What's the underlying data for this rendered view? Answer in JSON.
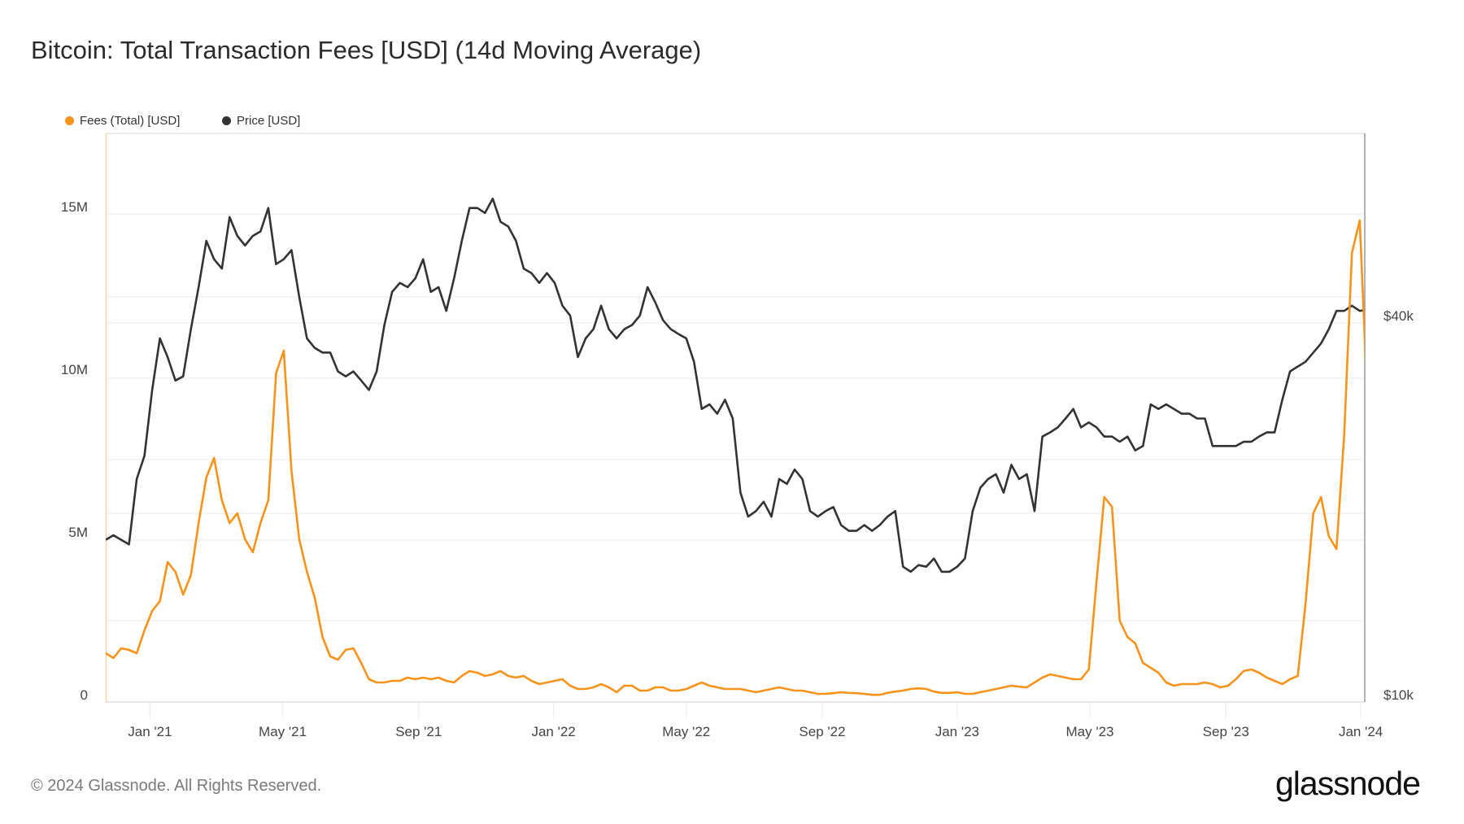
{
  "title": "Bitcoin: Total Transaction Fees [USD] (14d Moving Average)",
  "footer": "© 2024 Glassnode. All Rights Reserved.",
  "logo": "glassnode",
  "colors": {
    "fees": "#f7931a",
    "price": "#333333"
  },
  "chart_data": {
    "type": "line",
    "title": "Bitcoin: Total Transaction Fees [USD] (14d Moving Average)",
    "legend": [
      {
        "name": "Fees (Total) [USD]",
        "color": "#f7931a"
      },
      {
        "name": "Price [USD]",
        "color": "#333333"
      }
    ],
    "legend_position": "top-left",
    "x": {
      "start_date": "2020-11-22",
      "step_days": 7,
      "tick_labels": [
        "Jan '21",
        "May '21",
        "Sep '21",
        "Jan '22",
        "May '22",
        "Sep '22",
        "Jan '23",
        "May '23",
        "Sep '23",
        "Jan '24"
      ],
      "tick_dates": [
        "2021-01-01",
        "2021-05-01",
        "2021-09-01",
        "2022-01-01",
        "2022-05-01",
        "2022-09-01",
        "2023-01-01",
        "2023-05-01",
        "2023-09-01",
        "2024-01-01"
      ]
    },
    "y_left": {
      "label": "Fees (Total) [USD]",
      "unit": "millions USD",
      "range": [
        0,
        17.5
      ],
      "tick_values": [
        0,
        5,
        10,
        15
      ],
      "tick_labels": [
        "0",
        "5M",
        "10M",
        "15M"
      ]
    },
    "y_right": {
      "label": "Price [USD]",
      "scale": "log",
      "range": [
        10000,
        80000
      ],
      "tick_values": [
        10000,
        40000
      ],
      "tick_labels": [
        "$10k",
        "$40k"
      ]
    },
    "grid": true,
    "series": [
      {
        "name": "Fees (Total) [USD]",
        "axis": "left",
        "unit": "millions USD",
        "values": [
          1.5,
          1.35,
          1.65,
          1.6,
          1.5,
          2.2,
          2.8,
          3.1,
          4.3,
          4.0,
          3.3,
          3.9,
          5.5,
          6.9,
          7.5,
          6.2,
          5.5,
          5.8,
          5.0,
          4.6,
          5.5,
          6.2,
          10.1,
          10.8,
          7.1,
          5.0,
          4.0,
          3.2,
          2.0,
          1.4,
          1.3,
          1.6,
          1.65,
          1.2,
          0.7,
          0.6,
          0.6,
          0.65,
          0.65,
          0.75,
          0.7,
          0.75,
          0.7,
          0.75,
          0.65,
          0.6,
          0.8,
          0.95,
          0.9,
          0.8,
          0.85,
          0.95,
          0.8,
          0.75,
          0.8,
          0.65,
          0.55,
          0.6,
          0.65,
          0.7,
          0.5,
          0.4,
          0.4,
          0.45,
          0.55,
          0.45,
          0.3,
          0.5,
          0.5,
          0.35,
          0.35,
          0.45,
          0.45,
          0.35,
          0.35,
          0.4,
          0.5,
          0.6,
          0.5,
          0.45,
          0.4,
          0.4,
          0.4,
          0.35,
          0.3,
          0.35,
          0.4,
          0.45,
          0.4,
          0.35,
          0.35,
          0.3,
          0.25,
          0.25,
          0.27,
          0.3,
          0.28,
          0.27,
          0.25,
          0.22,
          0.22,
          0.28,
          0.32,
          0.35,
          0.4,
          0.42,
          0.4,
          0.32,
          0.28,
          0.28,
          0.3,
          0.25,
          0.25,
          0.3,
          0.35,
          0.4,
          0.45,
          0.5,
          0.47,
          0.45,
          0.6,
          0.75,
          0.85,
          0.8,
          0.75,
          0.7,
          0.7,
          1.0,
          3.7,
          6.3,
          6.0,
          2.5,
          2.0,
          1.8,
          1.2,
          1.05,
          0.9,
          0.6,
          0.5,
          0.55,
          0.55,
          0.55,
          0.6,
          0.55,
          0.45,
          0.5,
          0.7,
          0.95,
          1.0,
          0.9,
          0.75,
          0.65,
          0.55,
          0.7,
          0.8,
          3.0,
          5.8,
          6.3,
          5.1,
          4.7,
          8.2,
          13.8,
          14.8,
          9.2
        ]
      },
      {
        "name": "Price [USD]",
        "axis": "right",
        "unit": "USD",
        "values": [
          18100,
          18400,
          18100,
          17800,
          22600,
          24600,
          31300,
          37800,
          35300,
          32400,
          32900,
          39100,
          45600,
          54000,
          50500,
          48800,
          58900,
          55000,
          53100,
          55000,
          55900,
          60900,
          49600,
          50500,
          52200,
          44000,
          37800,
          36500,
          35900,
          35900,
          33500,
          32900,
          33500,
          32400,
          31300,
          33500,
          39700,
          44800,
          46300,
          45600,
          47100,
          50500,
          44800,
          45600,
          41800,
          47100,
          54000,
          60900,
          60900,
          59800,
          63000,
          57900,
          56900,
          54000,
          48800,
          48000,
          46300,
          48000,
          46300,
          42600,
          41100,
          35300,
          37800,
          39100,
          42600,
          39100,
          37800,
          39100,
          39700,
          41100,
          45600,
          43100,
          40400,
          39100,
          38400,
          37800,
          34700,
          29200,
          29700,
          28700,
          30200,
          28200,
          21500,
          19700,
          20100,
          20800,
          19700,
          22600,
          22200,
          23400,
          22600,
          20100,
          19700,
          20100,
          20400,
          19100,
          18700,
          18700,
          19100,
          18700,
          19100,
          19700,
          20100,
          16400,
          16100,
          16500,
          16400,
          16900,
          16100,
          16100,
          16400,
          16900,
          20100,
          21900,
          22600,
          23000,
          21500,
          23800,
          22600,
          23000,
          20100,
          26400,
          26800,
          27300,
          28200,
          29200,
          27300,
          27800,
          27300,
          26400,
          26400,
          25900,
          26400,
          25100,
          25500,
          29700,
          29200,
          29700,
          29200,
          28700,
          28700,
          28200,
          28200,
          25500,
          25500,
          25500,
          25500,
          25900,
          25900,
          26400,
          26800,
          26800,
          30200,
          33500,
          34100,
          34700,
          35900,
          37100,
          39100,
          41800,
          41800,
          42600,
          41800,
          42000
        ]
      }
    ]
  }
}
